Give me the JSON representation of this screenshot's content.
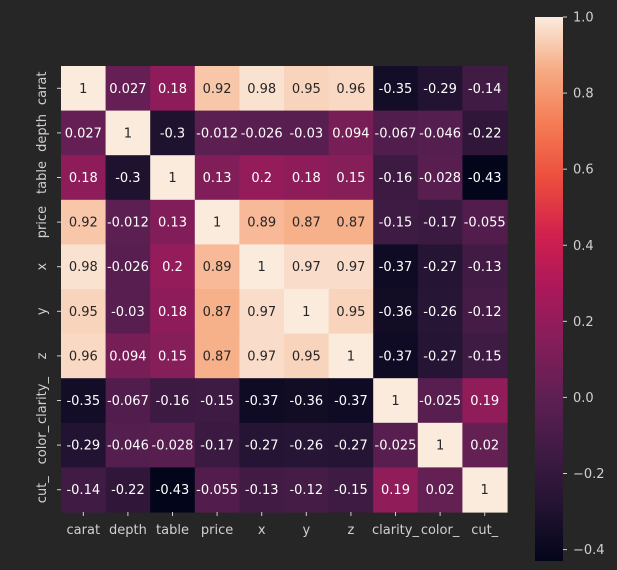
{
  "chart_data": {
    "type": "heatmap",
    "title": "",
    "xlabel": "",
    "ylabel": "",
    "x_labels": [
      "carat",
      "depth",
      "table",
      "price",
      "x",
      "y",
      "z",
      "clarity_",
      "color_",
      "cut_"
    ],
    "y_labels": [
      "carat",
      "depth",
      "table",
      "price",
      "x",
      "y",
      "z",
      "clarity_",
      "color_",
      "cut_"
    ],
    "values": [
      [
        1,
        0.027,
        0.18,
        0.92,
        0.98,
        0.95,
        0.96,
        -0.35,
        -0.29,
        -0.14
      ],
      [
        0.027,
        1,
        -0.3,
        -0.012,
        -0.026,
        -0.03,
        0.094,
        -0.067,
        -0.046,
        -0.22
      ],
      [
        0.18,
        -0.3,
        1,
        0.13,
        0.2,
        0.18,
        0.15,
        -0.16,
        -0.028,
        -0.43
      ],
      [
        0.92,
        -0.012,
        0.13,
        1,
        0.89,
        0.87,
        0.87,
        -0.15,
        -0.17,
        -0.055
      ],
      [
        0.98,
        -0.026,
        0.2,
        0.89,
        1,
        0.97,
        0.97,
        -0.37,
        -0.27,
        -0.13
      ],
      [
        0.95,
        -0.03,
        0.18,
        0.87,
        0.97,
        1,
        0.95,
        -0.36,
        -0.26,
        -0.12
      ],
      [
        0.96,
        0.094,
        0.15,
        0.87,
        0.97,
        0.95,
        1,
        -0.37,
        -0.27,
        -0.15
      ],
      [
        -0.35,
        -0.067,
        -0.16,
        -0.15,
        -0.37,
        -0.36,
        -0.37,
        1,
        -0.025,
        0.19
      ],
      [
        -0.29,
        -0.046,
        -0.028,
        -0.17,
        -0.27,
        -0.26,
        -0.27,
        -0.025,
        1,
        0.02
      ],
      [
        -0.14,
        -0.22,
        -0.43,
        -0.055,
        -0.13,
        -0.12,
        -0.15,
        0.19,
        0.02,
        1
      ]
    ],
    "colormap": "rocket",
    "vmin": -0.43,
    "vmax": 1.0,
    "colorbar_ticks": [
      -0.4,
      -0.2,
      0.0,
      0.2,
      0.4,
      0.6,
      0.8,
      1.0
    ],
    "colorbar_tick_labels": [
      "−0.4",
      "−0.2",
      "0.0",
      "0.2",
      "0.4",
      "0.6",
      "0.8",
      "1.0"
    ],
    "annotations": true,
    "grid": false,
    "legend": "colorbar-right"
  },
  "colors": {
    "background": "#262626",
    "text": "#d0d0d0",
    "colormap_stops": [
      [
        0.0,
        "#03051a"
      ],
      [
        0.1,
        "#221331"
      ],
      [
        0.2,
        "#3f1b44"
      ],
      [
        0.3,
        "#5e1f52"
      ],
      [
        0.4,
        "#841e5a"
      ],
      [
        0.5,
        "#ab185a"
      ],
      [
        0.6,
        "#d1204e"
      ],
      [
        0.7,
        "#ec4c3e"
      ],
      [
        0.8,
        "#f47a53"
      ],
      [
        0.9,
        "#f6aa82"
      ],
      [
        1.0,
        "#faebdd"
      ]
    ]
  }
}
